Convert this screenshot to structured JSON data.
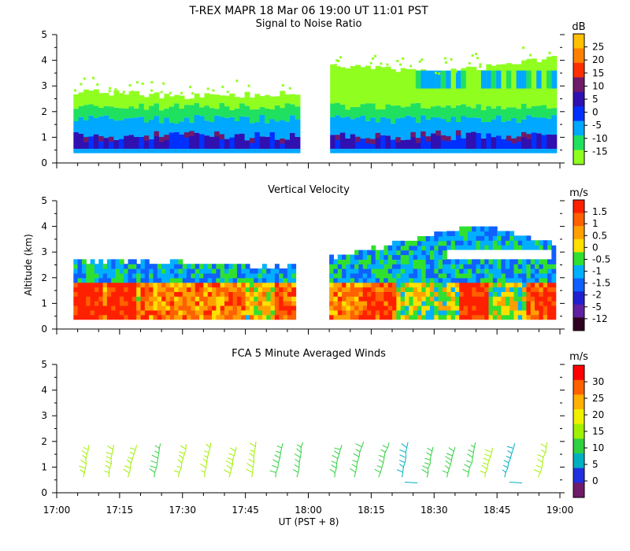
{
  "header": {
    "title": "T-REX   MAPR 18 Mar 06   19:00 UT   11:01   PST"
  },
  "x_axis": {
    "label": "UT  (PST + 8)",
    "range": [
      "17:00",
      "19:00"
    ],
    "ticks": [
      "17:00",
      "17:15",
      "17:30",
      "17:45",
      "18:00",
      "18:15",
      "18:30",
      "18:45",
      "19:00"
    ]
  },
  "y_axis": {
    "label": "Altitude (km)",
    "range": [
      0,
      5
    ],
    "ticks": [
      "0",
      "1",
      "2",
      "3",
      "4",
      "5"
    ]
  },
  "chart_data": [
    {
      "type": "heatmap",
      "title": "Signal to Noise Ratio",
      "ylabel": "",
      "unit": "dB",
      "colorbar": {
        "labels": [
          "25",
          "20",
          "15",
          "10",
          "5",
          "0",
          "-5",
          "-10",
          "-15"
        ],
        "colors": [
          "#ffc000",
          "#ff8000",
          "#ff3000",
          "#701a6a",
          "#3010b0",
          "#0030ff",
          "#00a8ff",
          "#20e060",
          "#90ff20"
        ]
      },
      "data_gap": [
        "17:57",
        "18:05"
      ],
      "top_altitude_km": {
        "times": [
          "17:04",
          "17:30",
          "17:57",
          "18:05",
          "18:30",
          "18:59"
        ],
        "values": [
          2.8,
          2.6,
          2.7,
          3.8,
          3.5,
          4.1
        ]
      },
      "layers": [
        {
          "name": "-15",
          "from_km": 2.2,
          "to_km": 2.8
        },
        {
          "name": "-10",
          "from_km": 1.6,
          "to_km": 2.2
        },
        {
          "name": "-5",
          "from_km": 0.8,
          "to_km": 1.6
        },
        {
          "name": "0",
          "from_km": 0.4,
          "to_km": 1.0
        },
        {
          "name": "5",
          "from_km": 1.0,
          "to_km": 1.4
        }
      ]
    },
    {
      "type": "heatmap",
      "title": "Vertical Velocity",
      "ylabel": "Altitude (km)",
      "unit": "m/s",
      "colorbar": {
        "labels": [
          "1.5",
          "1",
          "0.5",
          "0",
          "-0.5",
          "-1",
          "-1.5",
          "-2",
          "-5",
          "-12"
        ],
        "colors": [
          "#ff2000",
          "#ff6000",
          "#ffa000",
          "#ffe000",
          "#30e030",
          "#00b0ff",
          "#1060ff",
          "#2020d0",
          "#6020a0",
          "#300020"
        ]
      },
      "data_gap": [
        "17:57",
        "18:05"
      ],
      "top_altitude_km": {
        "times": [
          "17:04",
          "17:30",
          "17:57",
          "18:05",
          "18:40",
          "18:59"
        ],
        "values": [
          2.6,
          2.5,
          2.3,
          2.7,
          4.0,
          3.2
        ]
      }
    },
    {
      "type": "scatter",
      "title": "FCA 5 Minute Averaged Winds",
      "ylabel": "",
      "unit": "m/s",
      "colorbar": {
        "labels": [
          "30",
          "25",
          "20",
          "15",
          "10",
          "5",
          "0"
        ],
        "colors": [
          "#ff0000",
          "#ff6000",
          "#ffb000",
          "#f0f000",
          "#a0f000",
          "#30d040",
          "#00b0c0",
          "#2030e0",
          "#701a6a"
        ]
      },
      "x": [
        "17:07",
        "17:13",
        "17:18",
        "17:24",
        "17:30",
        "17:36",
        "17:42",
        "17:47",
        "17:53",
        "17:58",
        "18:07",
        "18:12",
        "18:18",
        "18:23",
        "18:29",
        "18:34",
        "18:39",
        "18:43",
        "18:48",
        "18:56"
      ],
      "altitude_range_km": [
        0.6,
        2.0
      ],
      "speed_ms": [
        14,
        14,
        14,
        13,
        14,
        14,
        14,
        14,
        12,
        12,
        13,
        13,
        13,
        6,
        10,
        10,
        11,
        14,
        6,
        15
      ]
    }
  ]
}
